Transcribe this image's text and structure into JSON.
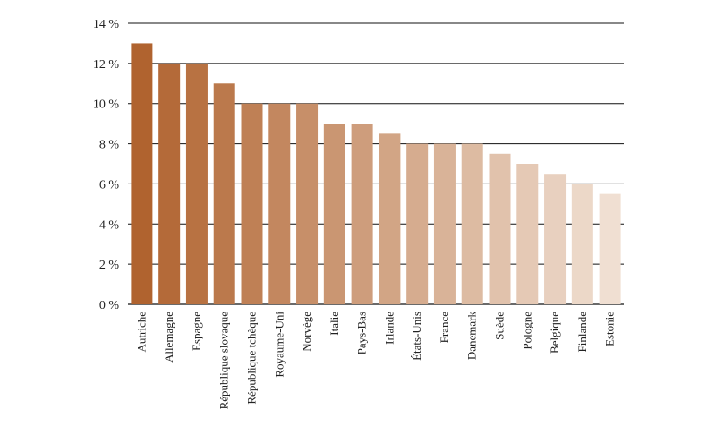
{
  "chart_data": {
    "type": "bar",
    "title": "",
    "xlabel": "",
    "ylabel": "",
    "categories": [
      "Autriche",
      "Allemagne",
      "Espagne",
      "République slovaque",
      "République tchèque",
      "Royaume-Uni",
      "Norvège",
      "Italie",
      "Pays-Bas",
      "Irlande",
      "États-Unis",
      "France",
      "Danemark",
      "Suède",
      "Pologne",
      "Belgique",
      "Finlande",
      "Estonie"
    ],
    "values": [
      13,
      12,
      12,
      11,
      10,
      10,
      10,
      9,
      9,
      8.5,
      8,
      8,
      8,
      7.5,
      7,
      6.5,
      6,
      5.5
    ],
    "ylim": [
      0,
      14
    ],
    "yticks": [
      0,
      2,
      4,
      6,
      8,
      10,
      12,
      14
    ],
    "ytick_labels": [
      "0 %",
      "2 %",
      "4 %",
      "6 %",
      "8 %",
      "10 %",
      "12 %",
      "14 %"
    ],
    "grid": true,
    "color_start": "#b0632f",
    "color_end": "#f0dfd2"
  }
}
